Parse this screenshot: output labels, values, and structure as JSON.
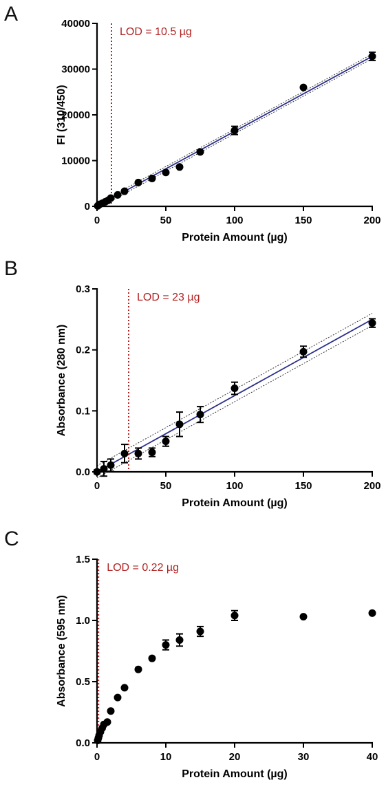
{
  "chart_data": [
    {
      "type": "scatter",
      "panel_label": "A",
      "xlabel": "Protein Amount (µg)",
      "ylabel": "FI (310/450)",
      "xlim": [
        0,
        200
      ],
      "ylim": [
        0,
        40000
      ],
      "xticks": [
        0,
        50,
        100,
        150,
        200
      ],
      "yticks": [
        0,
        10000,
        20000,
        30000,
        40000
      ],
      "lod": {
        "label": "LOD = 10.5 µg",
        "x": 10.5,
        "color": "#b22222"
      },
      "fit": {
        "type": "linear",
        "x": [
          0,
          200
        ],
        "y": [
          0,
          32800
        ],
        "ci_halfwidth": 500,
        "color": "#2b2f8a"
      },
      "series": [
        {
          "x": [
            0.5,
            1,
            2,
            4,
            6,
            8,
            10,
            15,
            20,
            30,
            40,
            50,
            60,
            75,
            100,
            150,
            200
          ],
          "y": [
            100,
            250,
            450,
            700,
            1000,
            1300,
            1800,
            2500,
            3300,
            5200,
            6100,
            7400,
            8600,
            11900,
            16600,
            26000,
            32800
          ],
          "err": [
            0,
            0,
            0,
            0,
            0,
            0,
            0,
            0,
            0,
            0,
            0,
            0,
            0,
            0,
            900,
            0,
            900
          ]
        }
      ],
      "grid": false
    },
    {
      "type": "scatter",
      "panel_label": "B",
      "xlabel": "Protein Amount (µg)",
      "ylabel": "Absorbance (280 nm)",
      "xlim": [
        0,
        200
      ],
      "ylim": [
        0,
        0.3
      ],
      "xticks": [
        0,
        50,
        100,
        150,
        200
      ],
      "yticks": [
        0.0,
        0.1,
        0.2,
        0.3
      ],
      "ytick_labels": [
        "0.0",
        "0.1",
        "0.2",
        "0.3"
      ],
      "lod": {
        "label": "LOD = 23 µg",
        "x": 23,
        "color": "#b22222"
      },
      "fit": {
        "type": "linear",
        "x": [
          0,
          200
        ],
        "y": [
          0.0,
          0.25
        ],
        "ci_halfwidth": 0.01,
        "color": "#2b2f8a"
      },
      "series": [
        {
          "x": [
            0,
            5,
            10,
            20,
            30,
            40,
            50,
            60,
            75,
            100,
            150,
            200
          ],
          "y": [
            0.0,
            0.005,
            0.011,
            0.03,
            0.03,
            0.032,
            0.05,
            0.078,
            0.094,
            0.137,
            0.197,
            0.244
          ],
          "err": [
            0.003,
            0.012,
            0.01,
            0.015,
            0.009,
            0.007,
            0.008,
            0.02,
            0.013,
            0.01,
            0.009,
            0.007
          ]
        }
      ],
      "grid": false
    },
    {
      "type": "scatter",
      "panel_label": "C",
      "xlabel": "Protein Amount (µg)",
      "ylabel": "Absorbance (595 nm)",
      "xlim": [
        0,
        40
      ],
      "ylim": [
        0,
        1.5
      ],
      "xticks": [
        0,
        10,
        20,
        30,
        40
      ],
      "yticks": [
        0.0,
        0.5,
        1.0,
        1.5
      ],
      "ytick_labels": [
        "0.0",
        "0.5",
        "1.0",
        "1.5"
      ],
      "lod": {
        "label": "LOD = 0.22 µg",
        "x": 0.22,
        "color": "#b22222"
      },
      "series": [
        {
          "x": [
            0.1,
            0.2,
            0.3,
            0.5,
            0.75,
            1,
            1.5,
            2,
            3,
            4,
            6,
            8,
            10,
            12,
            15,
            20,
            30,
            40
          ],
          "y": [
            0.02,
            0.04,
            0.06,
            0.09,
            0.12,
            0.15,
            0.17,
            0.26,
            0.37,
            0.45,
            0.6,
            0.69,
            0.8,
            0.84,
            0.91,
            1.04,
            1.03,
            1.06
          ],
          "err": [
            0,
            0,
            0,
            0,
            0,
            0,
            0,
            0,
            0,
            0,
            0,
            0,
            0.04,
            0.05,
            0.04,
            0.04,
            0,
            0
          ]
        }
      ],
      "grid": false
    }
  ]
}
